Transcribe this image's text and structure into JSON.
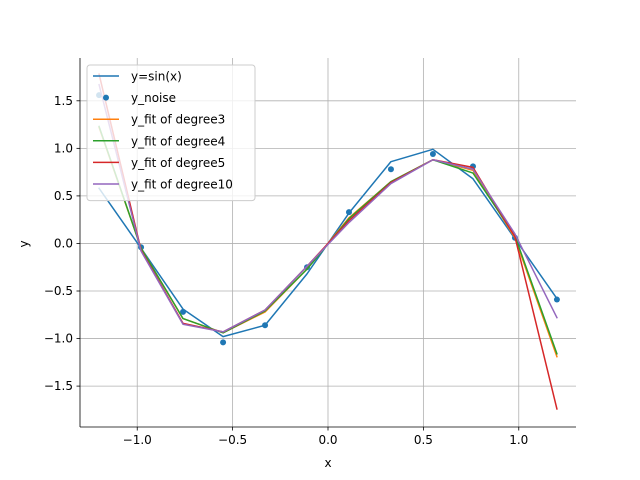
{
  "chart_data": {
    "type": "line",
    "xlabel": "x",
    "ylabel": "y",
    "xlim": [
      -1.3,
      1.3
    ],
    "ylim": [
      -1.93,
      1.95
    ],
    "grid": true,
    "legend_position": "top-left",
    "x_ticks": [
      -1.0,
      -0.5,
      0.0,
      0.5,
      1.0
    ],
    "x_tick_labels": [
      "−1.0",
      "−0.5",
      "0.0",
      "0.5",
      "1.0"
    ],
    "y_ticks": [
      -1.5,
      -1.0,
      -0.5,
      0.0,
      0.5,
      1.0,
      1.5
    ],
    "y_tick_labels": [
      "−1.5",
      "−1.0",
      "−0.5",
      "0.0",
      "0.5",
      "1.0",
      "1.5"
    ],
    "x": [
      -1.2,
      -0.98,
      -0.76,
      -0.55,
      -0.33,
      -0.11,
      0.11,
      0.33,
      0.55,
      0.76,
      0.98,
      1.2
    ],
    "series": [
      {
        "name": "y=sin(x)",
        "kind": "line",
        "color": "#1f77b4",
        "values": [
          0.58,
          -0.05,
          -0.69,
          -0.98,
          -0.86,
          -0.32,
          0.32,
          0.86,
          0.99,
          0.68,
          0.05,
          -0.58
        ]
      },
      {
        "name": "y_noise",
        "kind": "scatter",
        "color": "#1f77b4",
        "values": [
          1.56,
          -0.04,
          -0.72,
          -1.04,
          -0.86,
          -0.25,
          0.33,
          0.78,
          0.94,
          0.81,
          0.06,
          -0.59
        ]
      },
      {
        "name": "y_fit of degree3",
        "kind": "line",
        "color": "#ff7f0e",
        "values": [
          1.22,
          -0.05,
          -0.79,
          -0.94,
          -0.72,
          -0.27,
          0.27,
          0.65,
          0.88,
          0.77,
          0.06,
          -1.19
        ]
      },
      {
        "name": "y_fit of degree4",
        "kind": "line",
        "color": "#2ca02c",
        "values": [
          1.23,
          -0.05,
          -0.79,
          -0.94,
          -0.71,
          -0.27,
          0.26,
          0.65,
          0.88,
          0.74,
          0.08,
          -1.16
        ]
      },
      {
        "name": "y_fit of degree5",
        "kind": "line",
        "color": "#d62728",
        "values": [
          1.78,
          -0.07,
          -0.84,
          -0.93,
          -0.7,
          -0.24,
          0.24,
          0.64,
          0.88,
          0.8,
          0.07,
          -1.74
        ]
      },
      {
        "name": "y_fit of degree10",
        "kind": "line",
        "color": "#9467bd",
        "values": [
          1.67,
          -0.08,
          -0.85,
          -0.93,
          -0.7,
          -0.24,
          0.22,
          0.63,
          0.88,
          0.78,
          0.1,
          -0.78
        ]
      }
    ]
  }
}
